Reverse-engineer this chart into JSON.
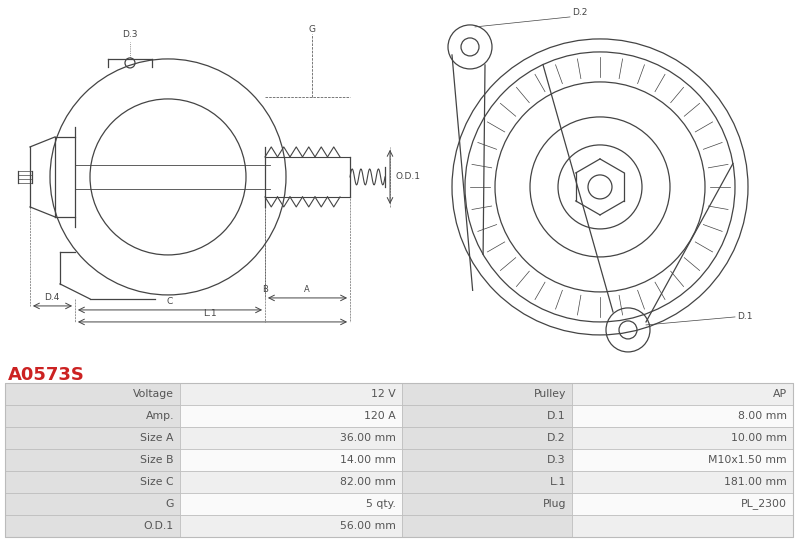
{
  "title": "A0573S",
  "title_color": "#cc2222",
  "bg_color": "#ffffff",
  "table_header_bg": "#e0e0e0",
  "table_row_bg1": "#efefef",
  "table_row_bg2": "#fafafa",
  "table_border_color": "#bbbbbb",
  "table_data": [
    [
      "Voltage",
      "12 V",
      "Pulley",
      "AP"
    ],
    [
      "Amp.",
      "120 A",
      "D.1",
      "8.00 mm"
    ],
    [
      "Size A",
      "36.00 mm",
      "D.2",
      "10.00 mm"
    ],
    [
      "Size B",
      "14.00 mm",
      "D.3",
      "M10x1.50 mm"
    ],
    [
      "Size C",
      "82.00 mm",
      "L.1",
      "181.00 mm"
    ],
    [
      "G",
      "5 qty.",
      "Plug",
      "PL_2300"
    ],
    [
      "O.D.1",
      "56.00 mm",
      "",
      ""
    ]
  ],
  "text_color": "#555555",
  "line_color": "#444444"
}
